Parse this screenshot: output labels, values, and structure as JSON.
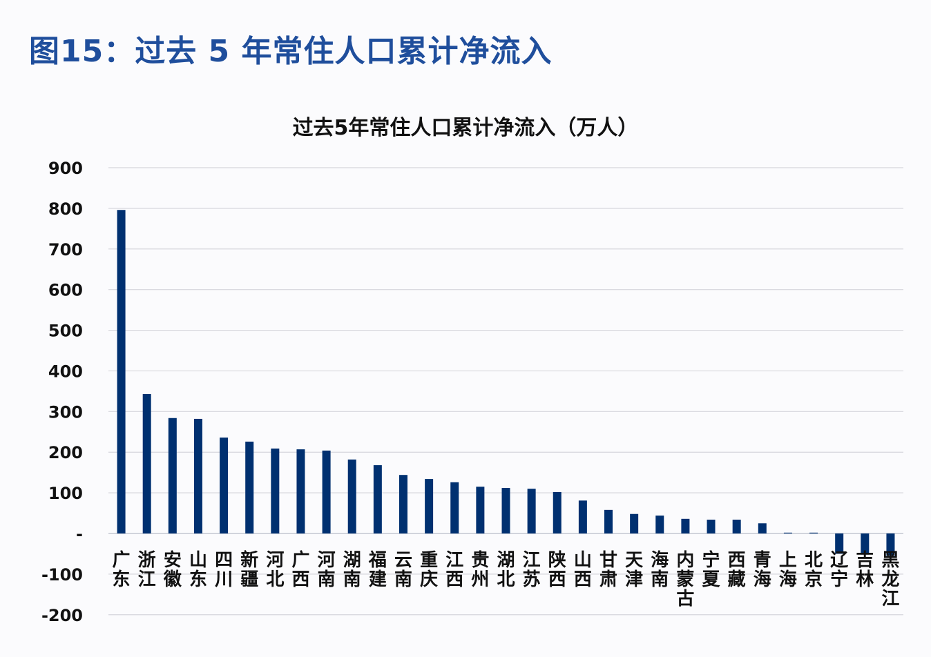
{
  "figure_title": "图15：过去 5 年常住人口累计净流入",
  "chart_data": {
    "type": "bar",
    "title": "过去5年常住人口累计净流入（万人）",
    "xlabel": "",
    "ylabel": "",
    "ylim": [
      -200,
      900
    ],
    "yticks": [
      900,
      800,
      700,
      600,
      500,
      400,
      300,
      200,
      100,
      0,
      -100,
      -200
    ],
    "ytick_labels": [
      "900",
      "800",
      "700",
      "600",
      "500",
      "400",
      "300",
      "200",
      "100",
      "-",
      "-100",
      "-200"
    ],
    "grid": true,
    "legend": null,
    "bar_color": "#003070",
    "categories": [
      "广东",
      "浙江",
      "安徽",
      "山东",
      "四川",
      "新疆",
      "河北",
      "广西",
      "河南",
      "湖南",
      "福建",
      "云南",
      "重庆",
      "江西",
      "贵州",
      "湖北",
      "江苏",
      "陕西",
      "山西",
      "甘肃",
      "天津",
      "海南",
      "内蒙古",
      "宁夏",
      "西藏",
      "青海",
      "上海",
      "北京",
      "辽宁",
      "吉林",
      "黑龙江"
    ],
    "values": [
      796,
      343,
      284,
      282,
      236,
      226,
      209,
      207,
      204,
      182,
      168,
      144,
      134,
      126,
      115,
      112,
      110,
      102,
      81,
      58,
      48,
      44,
      36,
      34,
      34,
      25,
      2,
      2,
      -50,
      -52,
      -55
    ]
  }
}
